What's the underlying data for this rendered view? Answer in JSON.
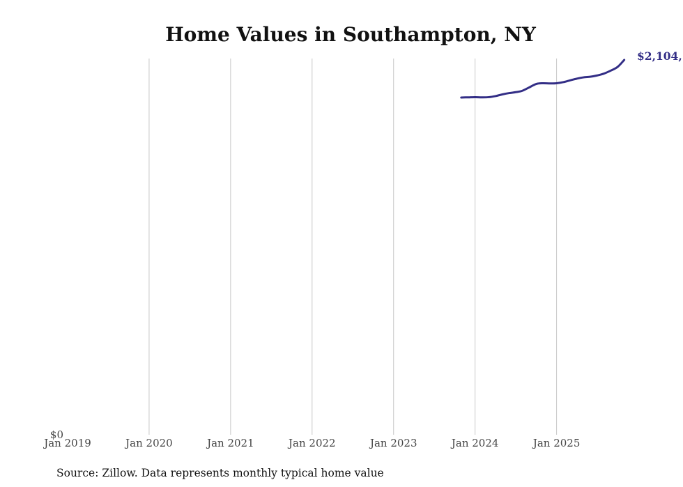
{
  "chart_data": {
    "type": "line",
    "title": "Home Values in Southampton, NY",
    "xlabel": "",
    "ylabel": "",
    "x_tick_labels": [
      "Jan 2019",
      "Jan 2020",
      "Jan 2021",
      "Jan 2022",
      "Jan 2023",
      "Jan 2024",
      "Jan 2025"
    ],
    "x_tick_years": [
      2019,
      2020,
      2021,
      2022,
      2023,
      2024,
      2025
    ],
    "xlim": [
      2019.0,
      2025.85
    ],
    "y_tick_labels": [
      "$0"
    ],
    "ylim": [
      0,
      2104000
    ],
    "grid": "vertical",
    "series": [
      {
        "name": "Southampton, NY",
        "color": "#332e86",
        "x": [
          2023.83,
          2023.92,
          2024.0,
          2024.08,
          2024.17,
          2024.25,
          2024.33,
          2024.42,
          2024.5,
          2024.58,
          2024.67,
          2024.75,
          2024.83,
          2024.92,
          2025.0,
          2025.08,
          2025.17,
          2025.25,
          2025.33,
          2025.42,
          2025.5,
          2025.58,
          2025.67,
          2025.75,
          2025.83
        ],
        "values": [
          1893000,
          1894000,
          1895000,
          1894000,
          1895000,
          1901000,
          1910000,
          1918000,
          1923000,
          1931000,
          1951000,
          1969000,
          1973000,
          1972000,
          1973000,
          1979000,
          1990000,
          1999000,
          2006000,
          2010000,
          2017000,
          2027000,
          2045000,
          2065000,
          2104000
        ]
      }
    ],
    "end_label": "$2,104,",
    "source": "Source: Zillow. Data represents monthly typical home value"
  }
}
